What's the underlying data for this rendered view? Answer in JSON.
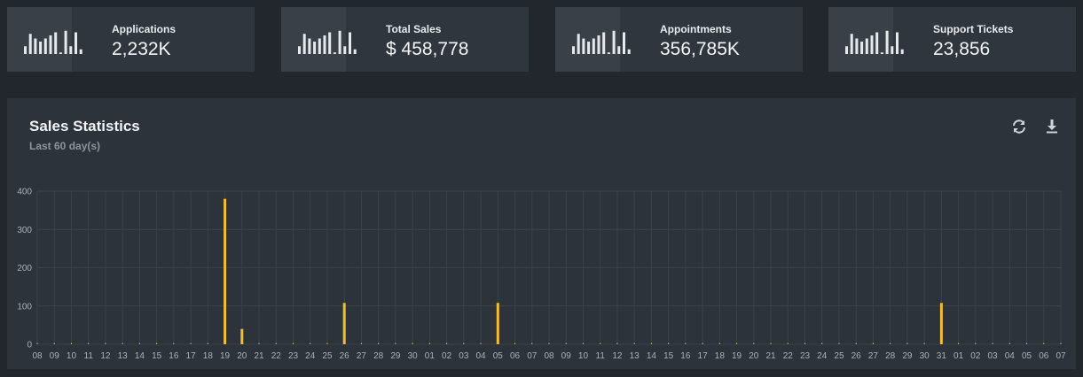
{
  "kpis": [
    {
      "label": "Applications",
      "value": "2,232K",
      "spark": [
        5,
        13,
        10,
        8,
        10,
        12,
        14,
        1,
        15,
        5,
        14,
        3
      ]
    },
    {
      "label": "Total Sales",
      "value": "$ 458,778",
      "spark": [
        5,
        13,
        10,
        8,
        10,
        12,
        14,
        1,
        15,
        5,
        14,
        3
      ]
    },
    {
      "label": "Appointments",
      "value": "356,785K",
      "spark": [
        5,
        13,
        10,
        8,
        10,
        12,
        14,
        1,
        15,
        5,
        14,
        3
      ]
    },
    {
      "label": "Support Tickets",
      "value": "23,856",
      "spark": [
        5,
        13,
        10,
        8,
        10,
        12,
        14,
        1,
        15,
        5,
        14,
        3
      ]
    }
  ],
  "panel": {
    "title": "Sales Statistics",
    "subtitle": "Last 60 day(s)",
    "tools": [
      {
        "name": "refresh-icon"
      },
      {
        "name": "download-icon"
      }
    ]
  },
  "colors": {
    "bar": "#f0be2f",
    "grid": "#39424b",
    "axis_text": "#aab1b8"
  },
  "chart_data": {
    "type": "bar",
    "categories": [
      "08",
      "09",
      "10",
      "11",
      "12",
      "13",
      "14",
      "15",
      "16",
      "17",
      "18",
      "19",
      "20",
      "21",
      "22",
      "23",
      "24",
      "25",
      "26",
      "27",
      "28",
      "29",
      "30",
      "01",
      "02",
      "03",
      "04",
      "05",
      "06",
      "07",
      "08",
      "09",
      "10",
      "11",
      "12",
      "13",
      "14",
      "15",
      "16",
      "17",
      "18",
      "19",
      "20",
      "21",
      "22",
      "23",
      "24",
      "25",
      "26",
      "27",
      "28",
      "29",
      "30",
      "31",
      "01",
      "02",
      "03",
      "04",
      "05",
      "06",
      "07"
    ],
    "values": [
      0,
      0,
      0,
      0,
      0,
      0,
      0,
      0,
      0,
      0,
      0,
      380,
      40,
      0,
      0,
      0,
      0,
      0,
      108,
      0,
      0,
      0,
      0,
      0,
      0,
      0,
      0,
      108,
      0,
      0,
      0,
      0,
      0,
      0,
      0,
      0,
      0,
      0,
      0,
      0,
      0,
      0,
      0,
      0,
      0,
      0,
      0,
      0,
      0,
      0,
      0,
      0,
      0,
      108,
      0,
      0,
      0,
      0,
      0,
      0,
      0
    ],
    "ylim": [
      0,
      400
    ],
    "yticks": [
      0,
      100,
      200,
      300,
      400
    ],
    "grid": true,
    "legend": "none"
  }
}
